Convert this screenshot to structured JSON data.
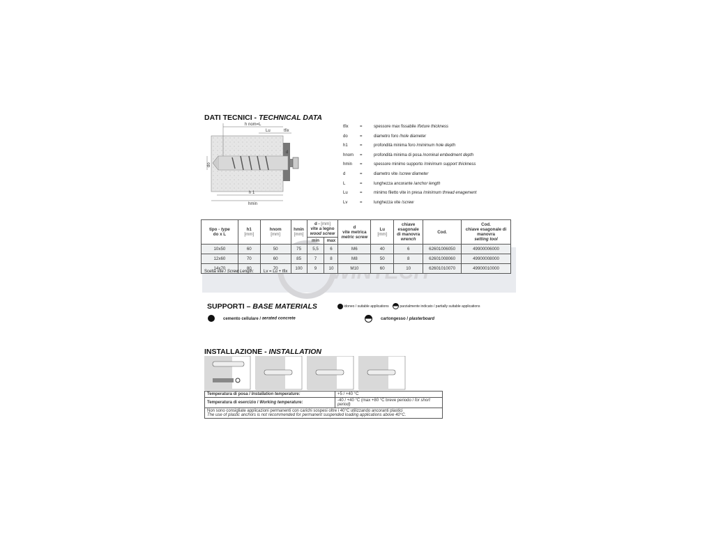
{
  "technical": {
    "title": "DATI TECNICI - ",
    "title_en": "TECHNICAL DATA",
    "diagram_labels": {
      "hnom": "h nom=L",
      "lu": "Lu",
      "tfix": "tfix",
      "do": "do",
      "d": "d",
      "h1": "h 1",
      "hmin": "hmin"
    },
    "legend": [
      {
        "k": "tfix",
        "it": "spessore max fissabile / ",
        "en": "fixture thickness"
      },
      {
        "k": "do",
        "it": "diametro foro / ",
        "en": "hole diameter"
      },
      {
        "k": "h1",
        "it": "profondità minima foro / ",
        "en": "minimum hole depth"
      },
      {
        "k": "hnom",
        "it": "profondità minima di posa / ",
        "en": "nominal embedment depth"
      },
      {
        "k": "hmin",
        "it": "spessore minimo supporto / ",
        "en": "minimum support thickness"
      },
      {
        "k": "d",
        "it": "diametro vite / ",
        "en": "screw diameter"
      },
      {
        "k": "L",
        "it": "lunghezza ancorante / ",
        "en": "anchor length"
      },
      {
        "k": "Lu",
        "it": "minimo filetto vite in presa / ",
        "en": "minimum thread enagement"
      },
      {
        "k": "Lv",
        "it": "lunghezza vite / ",
        "en": "screw"
      }
    ]
  },
  "table": {
    "headers": {
      "tipo": "tipo - ",
      "tipo_en": "type",
      "tipo2": "do x L",
      "h1": "h1",
      "hnom": "hnom",
      "hmin": "hmin",
      "unit": "[mm]",
      "d": "d - ",
      "d2": "vite a legno",
      "d_en": "wood screw",
      "min": "min",
      "max": "max",
      "dm": "d",
      "dm2": "vite metrica",
      "dm_en": "metric screw",
      "lu": "Lu",
      "ch1": "chiave",
      "ch2": "esagonale",
      "ch3": "di manovra",
      "ch_en": "wrench",
      "cod": "Cod.",
      "cod2a": "Cod.",
      "cod2b": "chiave esagonale di",
      "cod2c": "manovra",
      "cod2_en": "setting tool"
    },
    "rows": [
      [
        "10x50",
        "60",
        "50",
        "75",
        "5,5",
        "6",
        "M6",
        "40",
        "6",
        "62601006050",
        "49900006000"
      ],
      [
        "12x60",
        "70",
        "60",
        "85",
        "7",
        "8",
        "M8",
        "50",
        "8",
        "62601008060",
        "49900008000"
      ],
      [
        "14x70",
        "80",
        "70",
        "100",
        "9",
        "10",
        "M10",
        "60",
        "10",
        "62601010070",
        "49900010000"
      ]
    ],
    "footnote_it": "Scelta vite / ",
    "footnote_en": "Screw Length:",
    "footnote_formula": "Lv = Lu + tfix"
  },
  "watermark": "WINTECH",
  "supports": {
    "title": "SUPPORTI – ",
    "title_en": "BASE MATERIALS",
    "key_suitable": "idoneo / suitable applications",
    "key_partial": "parzialmente indicato / partially suitable applications",
    "m1_it": "cemento cellulare / ",
    "m1_en": "aerated concrete",
    "m2_it": "cartongesso / ",
    "m2_en": "plasterboard"
  },
  "installation": {
    "title": "INSTALLAZIONE - ",
    "title_en": "INSTALLATION",
    "t1_it": "Temperatura di posa / ",
    "t1_en": "Installation temperature:",
    "t1_val": "+5  / +40 °C",
    "t2_it": "Temperatura di esercizio / ",
    "t2_en": "Working temperature:",
    "t2_val": "-40 / +40 °C (max +80 °C breve periodo / ",
    "t2_val_en": "for short period)",
    "note_it": "Non sono consigliate applicazioni permanenti con carichi sospesi oltre i 40°C utilizzando ancoranti plastici",
    "note_en": "The use of plastic anchors is not recommended for permanent suspended loading applications above 40°C."
  }
}
